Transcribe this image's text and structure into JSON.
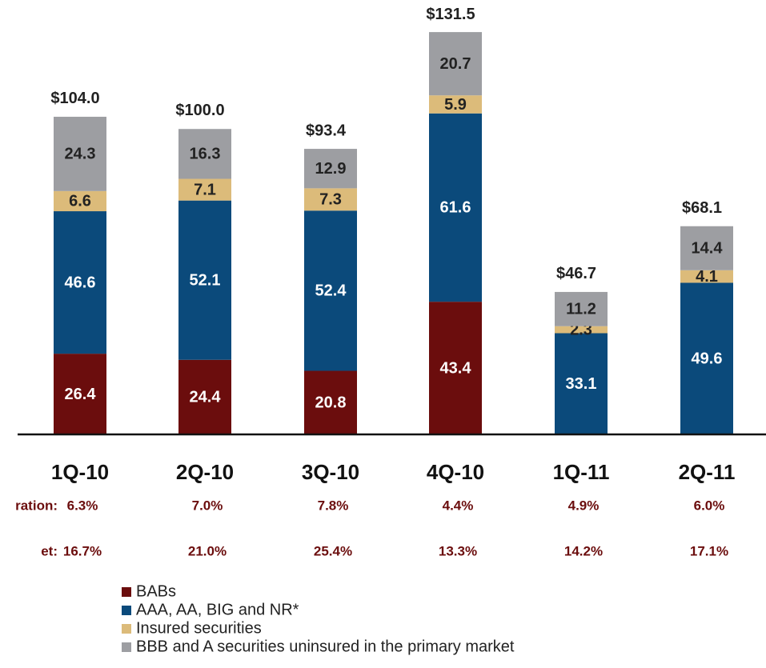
{
  "chart_data": {
    "type": "stacked_bar",
    "categories": [
      "1Q-10",
      "2Q-10",
      "3Q-10",
      "4Q-10",
      "1Q-11",
      "2Q-11"
    ],
    "series": [
      {
        "name": "BABs",
        "color": "#6b0d0d",
        "values": [
          26.4,
          24.4,
          20.8,
          43.4,
          null,
          null
        ]
      },
      {
        "name": "AAA, AA, BIG and NR*",
        "color": "#0b4a7b",
        "values": [
          46.6,
          52.1,
          52.4,
          61.6,
          33.1,
          49.6
        ]
      },
      {
        "name": "Insured securities",
        "color": "#dcbb7a",
        "values": [
          6.6,
          7.1,
          7.3,
          5.9,
          2.3,
          4.1
        ]
      },
      {
        "name": "BBB and A securities uninsured in the primary market",
        "color": "#9d9ea2",
        "values": [
          24.3,
          16.3,
          12.9,
          20.7,
          11.2,
          14.4
        ]
      }
    ],
    "totals": {
      "values": [
        104.0,
        100.0,
        93.4,
        131.5,
        46.7,
        68.1
      ],
      "value_labels": [
        "$104.0",
        "$100.0",
        "$93.4",
        "$131.5",
        "$46.7",
        "$68.1"
      ]
    },
    "rows": [
      {
        "label": "ration:",
        "values": [
          6.3,
          7.0,
          7.8,
          4.4,
          4.9,
          6.0
        ],
        "value_labels": [
          "6.3%",
          "7.0%",
          "7.8%",
          "4.4%",
          "4.9%",
          "6.0%"
        ]
      },
      {
        "label": "et:",
        "values": [
          16.7,
          21.0,
          25.4,
          13.3,
          14.2,
          17.1
        ],
        "value_labels": [
          "16.7%",
          "21.0%",
          "25.4%",
          "13.3%",
          "14.2%",
          "17.1%"
        ]
      }
    ],
    "ylim": [
      0,
      140
    ]
  }
}
